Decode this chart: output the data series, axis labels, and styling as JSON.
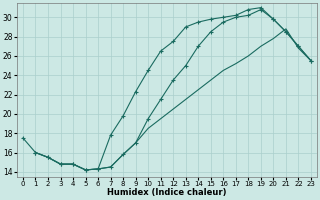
{
  "xlabel": "Humidex (Indice chaleur)",
  "bg_color": "#cce8e4",
  "grid_color": "#aacfcc",
  "line_color": "#1a6b60",
  "xlim": [
    -0.5,
    23.5
  ],
  "ylim": [
    13.5,
    31.5
  ],
  "xticks": [
    0,
    1,
    2,
    3,
    4,
    5,
    6,
    7,
    8,
    9,
    10,
    11,
    12,
    13,
    14,
    15,
    16,
    17,
    18,
    19,
    20,
    21,
    22,
    23
  ],
  "yticks": [
    14,
    16,
    18,
    20,
    22,
    24,
    26,
    28,
    30
  ],
  "line1_x": [
    0,
    1,
    2,
    3,
    4,
    5,
    6,
    7,
    8,
    9,
    10,
    11,
    12,
    13,
    14,
    15,
    16,
    17,
    18,
    19,
    20,
    21,
    22,
    23
  ],
  "line1_y": [
    17.5,
    16.0,
    15.5,
    14.8,
    14.8,
    14.2,
    14.3,
    17.8,
    19.8,
    22.3,
    24.5,
    26.5,
    27.5,
    29.0,
    29.5,
    29.8,
    30.0,
    30.2,
    30.8,
    31.0,
    29.8,
    28.5,
    27.0,
    25.5
  ],
  "line2_x": [
    1,
    2,
    3,
    4,
    5,
    6,
    7,
    8,
    9,
    10,
    11,
    12,
    13,
    14,
    15,
    16,
    17,
    18,
    19,
    20,
    21,
    22,
    23
  ],
  "line2_y": [
    16.0,
    15.5,
    14.8,
    14.8,
    14.2,
    14.3,
    14.5,
    15.8,
    17.0,
    18.5,
    19.5,
    20.5,
    21.5,
    22.5,
    23.5,
    24.5,
    25.2,
    26.0,
    27.0,
    27.8,
    28.8,
    26.8,
    25.5
  ],
  "line3_x": [
    1,
    2,
    3,
    4,
    5,
    6,
    7,
    8,
    9,
    10,
    11,
    12,
    13,
    14,
    15,
    16,
    17,
    18,
    19,
    20,
    21,
    22,
    23
  ],
  "line3_y": [
    16.0,
    15.5,
    14.8,
    14.8,
    14.2,
    14.3,
    14.5,
    15.8,
    17.0,
    19.5,
    21.5,
    23.5,
    25.0,
    27.0,
    28.5,
    29.5,
    30.0,
    30.2,
    30.8,
    29.8,
    28.5,
    27.0,
    25.5
  ]
}
